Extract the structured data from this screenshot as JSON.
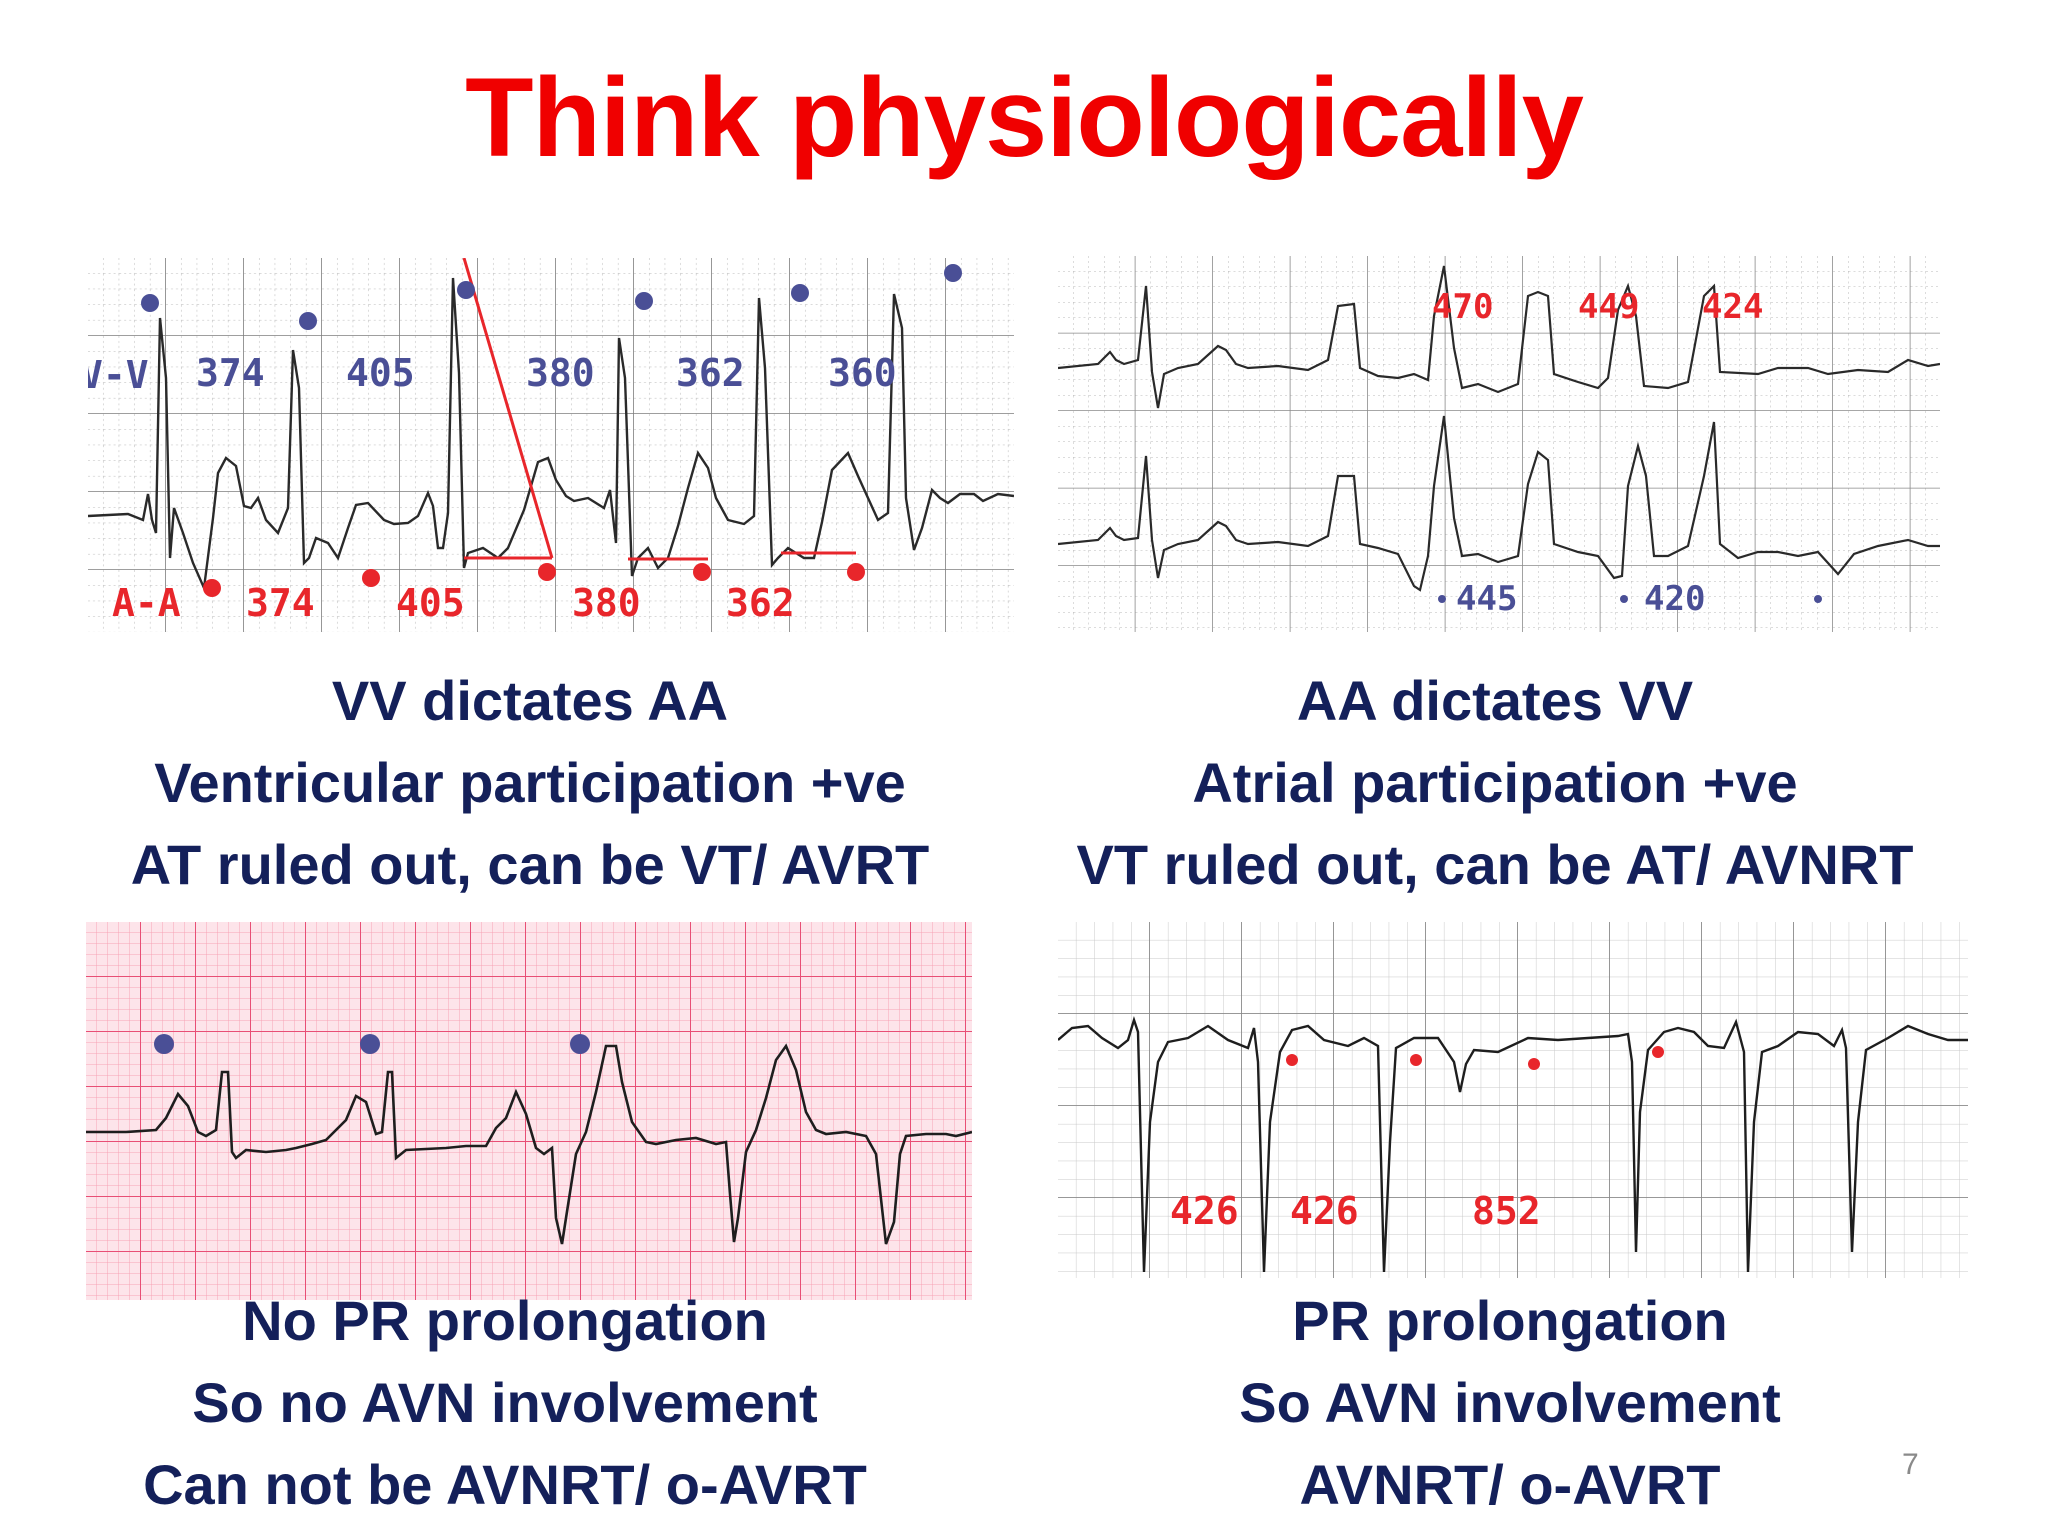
{
  "slide": {
    "title": "Think physiologically",
    "number": "7"
  },
  "panels": {
    "top_left": {
      "labels": {
        "vv": "V-V",
        "aa": "A-A"
      },
      "vv_intervals": [
        "374",
        "405",
        "380",
        "362",
        "360"
      ],
      "aa_intervals": [
        "374",
        "405",
        "380",
        "362"
      ],
      "caption": [
        "VV dictates AA",
        "Ventricular participation +ve",
        "AT ruled out, can be VT/ AVRT"
      ]
    },
    "top_right": {
      "intervals_top": [
        "470",
        "449",
        "424"
      ],
      "intervals_bottom": [
        "445",
        "420"
      ],
      "caption": [
        "AA dictates VV",
        "Atrial participation +ve",
        "VT ruled out, can be AT/ AVNRT"
      ]
    },
    "bottom_left": {
      "caption": [
        "No PR prolongation",
        "So no AVN involvement",
        "Can not be AVNRT/ o-AVRT"
      ]
    },
    "bottom_right": {
      "intervals": [
        "426",
        "426",
        "852"
      ],
      "caption": [
        "PR prolongation",
        "So AVN involvement",
        "AVNRT/ o-AVRT"
      ]
    }
  },
  "colors": {
    "title": "#f00000",
    "caption": "#14205a",
    "marker_blue": "#4a4f96",
    "marker_red": "#e8262b",
    "ecg_trace": "#2a2a2a",
    "grid_gray": "#9a9a9a",
    "grid_pink": "#f06a88"
  }
}
